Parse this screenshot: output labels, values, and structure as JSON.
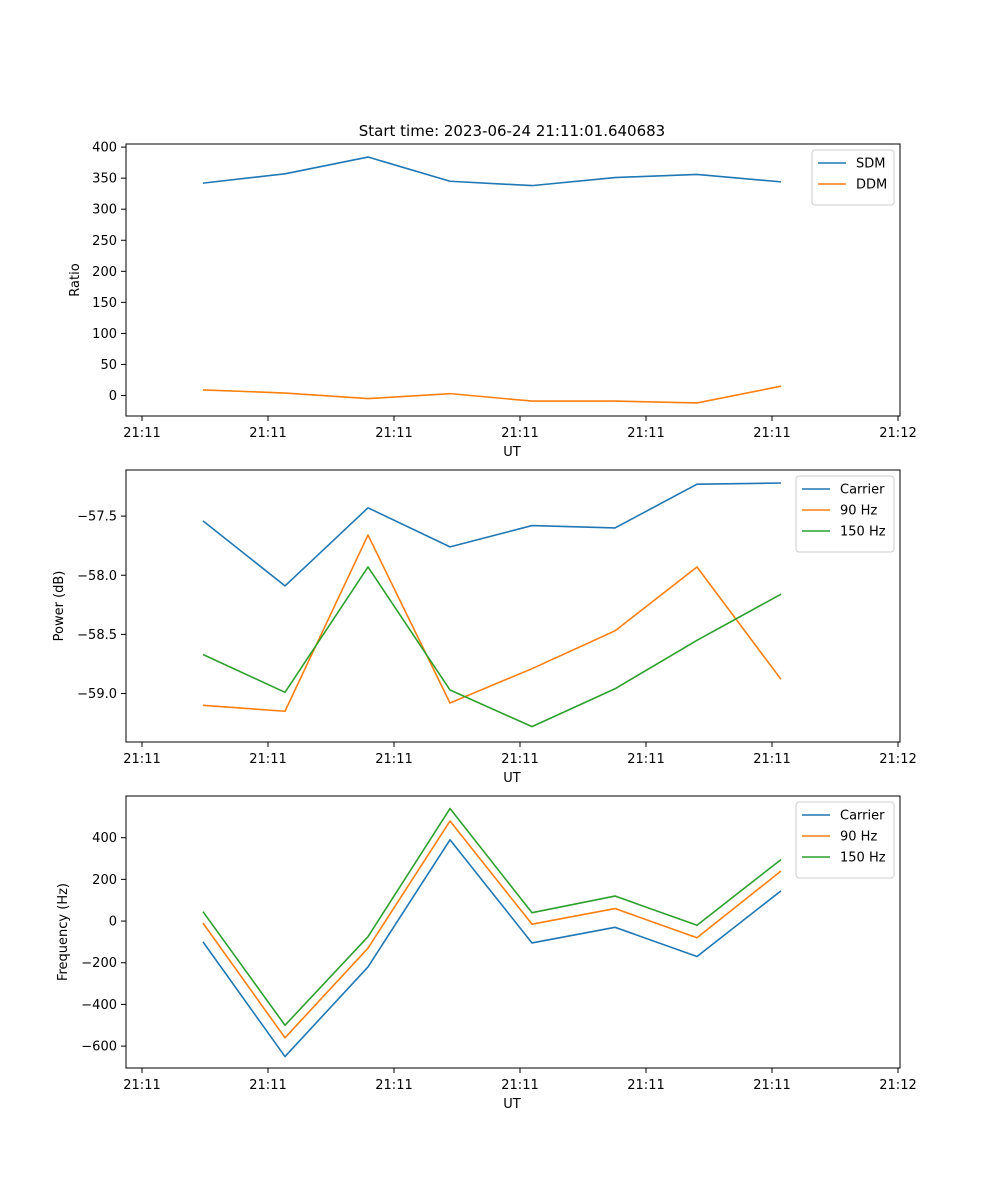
{
  "title": "Start time: 2023-06-24 21:11:01.640683",
  "chart_data": [
    {
      "type": "line",
      "xlabel": "UT",
      "ylabel": "Ratio",
      "x_tick_labels": [
        "21:11",
        "21:11",
        "21:11",
        "21:11",
        "21:11",
        "21:11",
        "21:11",
        "21:12"
      ],
      "y_ticks": [
        0,
        50,
        100,
        150,
        200,
        250,
        300,
        350,
        400
      ],
      "ylim": [
        -33,
        405
      ],
      "legend_position": "upper-right",
      "series": [
        {
          "name": "SDM",
          "color": "#1f77b4",
          "values": [
            342,
            357,
            384,
            345,
            338,
            351,
            356,
            344
          ]
        },
        {
          "name": "DDM",
          "color": "#ff7f0e",
          "values": [
            9,
            4,
            -5,
            3,
            -9,
            -9,
            -12,
            15
          ]
        }
      ]
    },
    {
      "type": "line",
      "xlabel": "UT",
      "ylabel": "Power (dB)",
      "x_tick_labels": [
        "21:11",
        "21:11",
        "21:11",
        "21:11",
        "21:11",
        "21:11",
        "21:11",
        "21:12"
      ],
      "y_ticks": [
        -59.0,
        -58.5,
        -58.0,
        -57.5
      ],
      "y_tick_labels": [
        "−59.0",
        "−58.5",
        "−58.0",
        "−57.5"
      ],
      "ylim": [
        -59.41,
        -57.11
      ],
      "legend_position": "upper-right",
      "series": [
        {
          "name": "Carrier",
          "color": "#1f77b4",
          "values": [
            -57.54,
            -58.09,
            -57.43,
            -57.76,
            -57.58,
            -57.6,
            -57.23,
            -57.22
          ]
        },
        {
          "name": "90 Hz",
          "color": "#ff7f0e",
          "values": [
            -59.1,
            -59.15,
            -57.66,
            -59.08,
            -58.79,
            -58.47,
            -57.93,
            -58.88
          ]
        },
        {
          "name": "150 Hz",
          "color": "#2ca02c",
          "values": [
            -58.67,
            -58.99,
            -57.93,
            -58.97,
            -59.28,
            -58.96,
            -58.55,
            -58.16
          ]
        }
      ]
    },
    {
      "type": "line",
      "xlabel": "UT",
      "ylabel": "Frequency (Hz)",
      "x_tick_labels": [
        "21:11",
        "21:11",
        "21:11",
        "21:11",
        "21:11",
        "21:11",
        "21:11",
        "21:12"
      ],
      "y_ticks": [
        -600,
        -400,
        -200,
        0,
        200,
        400
      ],
      "y_tick_labels": [
        "−600",
        "−400",
        "−200",
        "0",
        "200",
        "400"
      ],
      "ylim": [
        -705,
        600
      ],
      "legend_position": "upper-right",
      "series": [
        {
          "name": "Carrier",
          "color": "#1f77b4",
          "values": [
            -100,
            -650,
            -220,
            390,
            -105,
            -30,
            -170,
            145
          ]
        },
        {
          "name": "90 Hz",
          "color": "#ff7f0e",
          "values": [
            -10,
            -560,
            -130,
            480,
            -15,
            60,
            -80,
            240
          ]
        },
        {
          "name": "150 Hz",
          "color": "#2ca02c",
          "values": [
            45,
            -500,
            -75,
            540,
            40,
            120,
            -20,
            295
          ]
        }
      ]
    }
  ]
}
